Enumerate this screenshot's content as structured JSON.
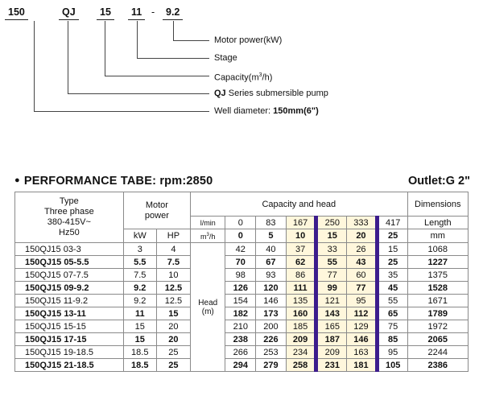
{
  "model_code": {
    "parts": [
      "150",
      "QJ",
      "15",
      "11",
      "-",
      "9.2"
    ],
    "legend": {
      "motor_power": "Motor power(kW)",
      "stage": "Stage",
      "capacity_prefix": "Capacity(m",
      "capacity_sup": "3",
      "capacity_suffix": "/h)",
      "series_bold": "QJ",
      "series_rest": " Series submersible pump",
      "well_prefix": "Well diameter: ",
      "well_bold": "150mm(6\")"
    }
  },
  "performance": {
    "title": "PERFORMANCE TABE:  rpm:2850",
    "outlet": "Outlet:G 2\""
  },
  "table": {
    "header": {
      "type_l1": "Type",
      "type_l2": "Three phase",
      "type_l3": "380-415V~",
      "type_l4": "Hz50",
      "motor_l1": "Motor",
      "motor_l2": "power",
      "kw": "kW",
      "hp": "HP",
      "capacity_head": "Capacity and head",
      "dimensions": "Dimensions",
      "lmin_label": "l/min",
      "m3h_label_prefix": "m",
      "m3h_label_sup": "3",
      "m3h_label_suffix": "/h",
      "length": "Length",
      "mm": "mm",
      "head_l1": "Head",
      "head_l2": "(m)"
    },
    "lmin": [
      "0",
      "83",
      "167",
      "250",
      "333",
      "417"
    ],
    "m3h": [
      "0",
      "5",
      "10",
      "15",
      "20",
      "25"
    ],
    "rows": [
      {
        "model": "150QJ15 03-3",
        "kw": "3",
        "hp": "4",
        "head": [
          "42",
          "40",
          "37",
          "33",
          "26",
          "15"
        ],
        "length": "1068",
        "bold": false
      },
      {
        "model": "150QJ15 05-5.5",
        "kw": "5.5",
        "hp": "7.5",
        "head": [
          "70",
          "67",
          "62",
          "55",
          "43",
          "25"
        ],
        "length": "1227",
        "bold": true
      },
      {
        "model": "150QJ15 07-7.5",
        "kw": "7.5",
        "hp": "10",
        "head": [
          "98",
          "93",
          "86",
          "77",
          "60",
          "35"
        ],
        "length": "1375",
        "bold": false
      },
      {
        "model": "150QJ15 09-9.2",
        "kw": "9.2",
        "hp": "12.5",
        "head": [
          "126",
          "120",
          "111",
          "99",
          "77",
          "45"
        ],
        "length": "1528",
        "bold": true
      },
      {
        "model": "150QJ15 11-9.2",
        "kw": "9.2",
        "hp": "12.5",
        "head": [
          "154",
          "146",
          "135",
          "121",
          "95",
          "55"
        ],
        "length": "1671",
        "bold": false
      },
      {
        "model": "150QJ15 13-11",
        "kw": "11",
        "hp": "15",
        "head": [
          "182",
          "173",
          "160",
          "143",
          "112",
          "65"
        ],
        "length": "1789",
        "bold": true
      },
      {
        "model": "150QJ15 15-15",
        "kw": "15",
        "hp": "20",
        "head": [
          "210",
          "200",
          "185",
          "165",
          "129",
          "75"
        ],
        "length": "1972",
        "bold": false
      },
      {
        "model": "150QJ15 17-15",
        "kw": "15",
        "hp": "20",
        "head": [
          "238",
          "226",
          "209",
          "187",
          "146",
          "85"
        ],
        "length": "2065",
        "bold": true
      },
      {
        "model": "150QJ15 19-18.5",
        "kw": "18.5",
        "hp": "25",
        "head": [
          "266",
          "253",
          "234",
          "209",
          "163",
          "95"
        ],
        "length": "2244",
        "bold": false
      },
      {
        "model": "150QJ15 21-18.5",
        "kw": "18.5",
        "hp": "25",
        "head": [
          "294",
          "279",
          "258",
          "231",
          "181",
          "105"
        ],
        "length": "2386",
        "bold": true
      }
    ]
  }
}
